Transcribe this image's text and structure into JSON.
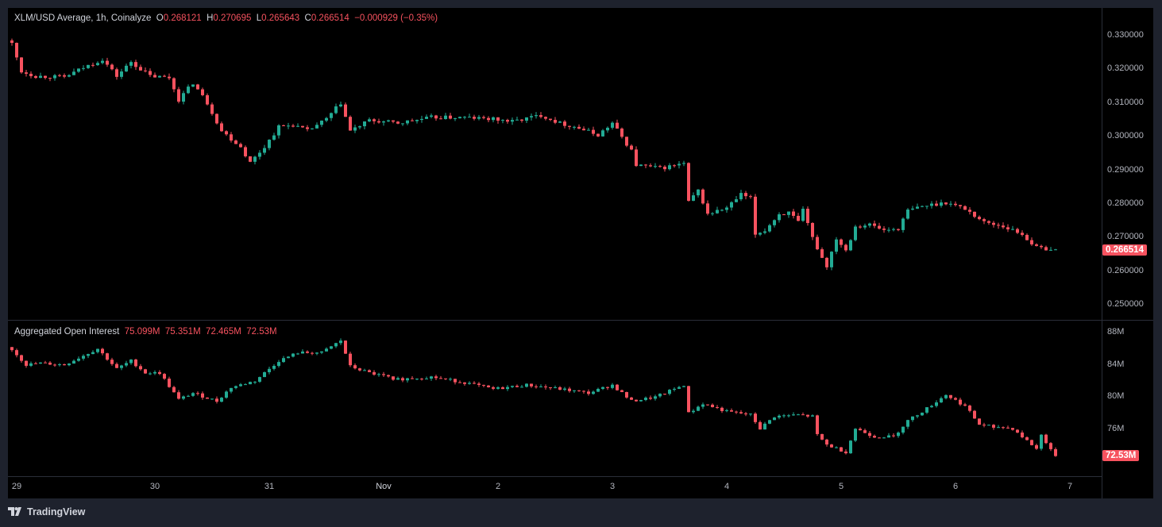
{
  "header": {
    "symbol": "XLM/USD Average, 1h, Coinalyze",
    "o_label": "O",
    "o": "0.268121",
    "h_label": "H",
    "h": "0.270695",
    "l_label": "L",
    "l": "0.265643",
    "c_label": "C",
    "c": "0.266514",
    "change": "−0.000929 (−0.35%)"
  },
  "oi_header": {
    "title": "Aggregated Open Interest",
    "v1": "75.099M",
    "v2": "75.351M",
    "v3": "72.465M",
    "v4": "72.53M"
  },
  "branding": {
    "logo_text": "TradingView"
  },
  "colors": {
    "up": "#22ab94",
    "down": "#f7525f",
    "bg": "#000000",
    "frame": "#1e222d"
  },
  "chart_data": [
    {
      "type": "candlestick",
      "title": "XLM/USD Average, 1h, Coinalyze",
      "x_unit": "hours from first candle",
      "ylim": [
        0.245,
        0.334
      ],
      "yticks": [
        "0.330000",
        "0.320000",
        "0.310000",
        "0.300000",
        "0.290000",
        "0.280000",
        "0.270000",
        "0.260000",
        "0.250000"
      ],
      "last_price": "0.266514",
      "candle_count": 220,
      "close_keypoints": [
        [
          0,
          0.3276
        ],
        [
          2,
          0.3194
        ],
        [
          5,
          0.318
        ],
        [
          11,
          0.3177
        ],
        [
          15,
          0.3205
        ],
        [
          19,
          0.323
        ],
        [
          22,
          0.318
        ],
        [
          25,
          0.3222
        ],
        [
          29,
          0.318
        ],
        [
          33,
          0.3175
        ],
        [
          35,
          0.311
        ],
        [
          38,
          0.316
        ],
        [
          41,
          0.31
        ],
        [
          44,
          0.3017
        ],
        [
          48,
          0.297
        ],
        [
          50,
          0.2923
        ],
        [
          53,
          0.297
        ],
        [
          56,
          0.3029
        ],
        [
          59,
          0.3035
        ],
        [
          62,
          0.3017
        ],
        [
          66,
          0.3052
        ],
        [
          69,
          0.31
        ],
        [
          71,
          0.3017
        ],
        [
          75,
          0.3048
        ],
        [
          81,
          0.304
        ],
        [
          88,
          0.3057
        ],
        [
          95,
          0.3057
        ],
        [
          101,
          0.3052
        ],
        [
          105,
          0.3045
        ],
        [
          111,
          0.3064
        ],
        [
          115,
          0.304
        ],
        [
          118,
          0.303
        ],
        [
          123,
          0.3005
        ],
        [
          126,
          0.304
        ],
        [
          130,
          0.2958
        ],
        [
          131,
          0.2916
        ],
        [
          136,
          0.2906
        ],
        [
          141,
          0.292
        ],
        [
          142,
          0.2805
        ],
        [
          144,
          0.284
        ],
        [
          146,
          0.277
        ],
        [
          150,
          0.2788
        ],
        [
          153,
          0.2828
        ],
        [
          155,
          0.2816
        ],
        [
          156,
          0.271
        ],
        [
          158,
          0.2722
        ],
        [
          161,
          0.277
        ],
        [
          163,
          0.2774
        ],
        [
          165,
          0.2746
        ],
        [
          166,
          0.278
        ],
        [
          168,
          0.2699
        ],
        [
          170,
          0.264
        ],
        [
          171,
          0.2616
        ],
        [
          173,
          0.2699
        ],
        [
          175,
          0.2663
        ],
        [
          177,
          0.2734
        ],
        [
          180,
          0.2739
        ],
        [
          183,
          0.2722
        ],
        [
          186,
          0.2727
        ],
        [
          188,
          0.278
        ],
        [
          191,
          0.2793
        ],
        [
          196,
          0.2805
        ],
        [
          200,
          0.2786
        ],
        [
          204,
          0.2746
        ],
        [
          208,
          0.2734
        ],
        [
          212,
          0.271
        ],
        [
          215,
          0.267
        ],
        [
          219,
          0.2665
        ]
      ]
    },
    {
      "type": "candlestick",
      "title": "Aggregated Open Interest",
      "x_unit": "hours from first candle",
      "ylim": [
        70.5,
        89.5
      ],
      "yticks": [
        "88M",
        "84M",
        "80M",
        "76M"
      ],
      "last_value": "72.53M",
      "candle_count": 220,
      "close_keypoints": [
        [
          0,
          85.9
        ],
        [
          3,
          84
        ],
        [
          6,
          84.2
        ],
        [
          11,
          84
        ],
        [
          18,
          86
        ],
        [
          22,
          83.5
        ],
        [
          25,
          84.5
        ],
        [
          28,
          83
        ],
        [
          31,
          83
        ],
        [
          35,
          79.7
        ],
        [
          38,
          80.5
        ],
        [
          43,
          79.5
        ],
        [
          46,
          81.2
        ],
        [
          51,
          82
        ],
        [
          56,
          84.5
        ],
        [
          60,
          85.5
        ],
        [
          65,
          85.5
        ],
        [
          69,
          87
        ],
        [
          71,
          83.8
        ],
        [
          75,
          83
        ],
        [
          81,
          82.2
        ],
        [
          88,
          82.5
        ],
        [
          95,
          81.8
        ],
        [
          101,
          81
        ],
        [
          108,
          81.5
        ],
        [
          115,
          81
        ],
        [
          121,
          80.5
        ],
        [
          126,
          81.5
        ],
        [
          130,
          79.5
        ],
        [
          135,
          80
        ],
        [
          141,
          81.5
        ],
        [
          142,
          78
        ],
        [
          145,
          79.2
        ],
        [
          150,
          78.2
        ],
        [
          155,
          77.8
        ],
        [
          157,
          76.1
        ],
        [
          160,
          77.6
        ],
        [
          165,
          77.8
        ],
        [
          168,
          77.6
        ],
        [
          169,
          75.3
        ],
        [
          171,
          74.1
        ],
        [
          175,
          73.2
        ],
        [
          177,
          76.1
        ],
        [
          181,
          75.1
        ],
        [
          185,
          75.1
        ],
        [
          188,
          77.1
        ],
        [
          192,
          78.6
        ],
        [
          196,
          80.3
        ],
        [
          200,
          78.9
        ],
        [
          203,
          76.6
        ],
        [
          210,
          76.1
        ],
        [
          212,
          75.1
        ],
        [
          215,
          73.6
        ],
        [
          216,
          75.3
        ],
        [
          219,
          72.7
        ]
      ]
    }
  ],
  "x_axis": {
    "ticks": [
      {
        "label": "29",
        "hour": 1
      },
      {
        "label": "30",
        "hour": 30
      },
      {
        "label": "31",
        "hour": 54
      },
      {
        "label": "Nov",
        "hour": 78
      },
      {
        "label": "2",
        "hour": 102
      },
      {
        "label": "3",
        "hour": 126
      },
      {
        "label": "4",
        "hour": 150
      },
      {
        "label": "5",
        "hour": 174
      },
      {
        "label": "6",
        "hour": 198
      },
      {
        "label": "7",
        "hour": 222
      }
    ]
  }
}
